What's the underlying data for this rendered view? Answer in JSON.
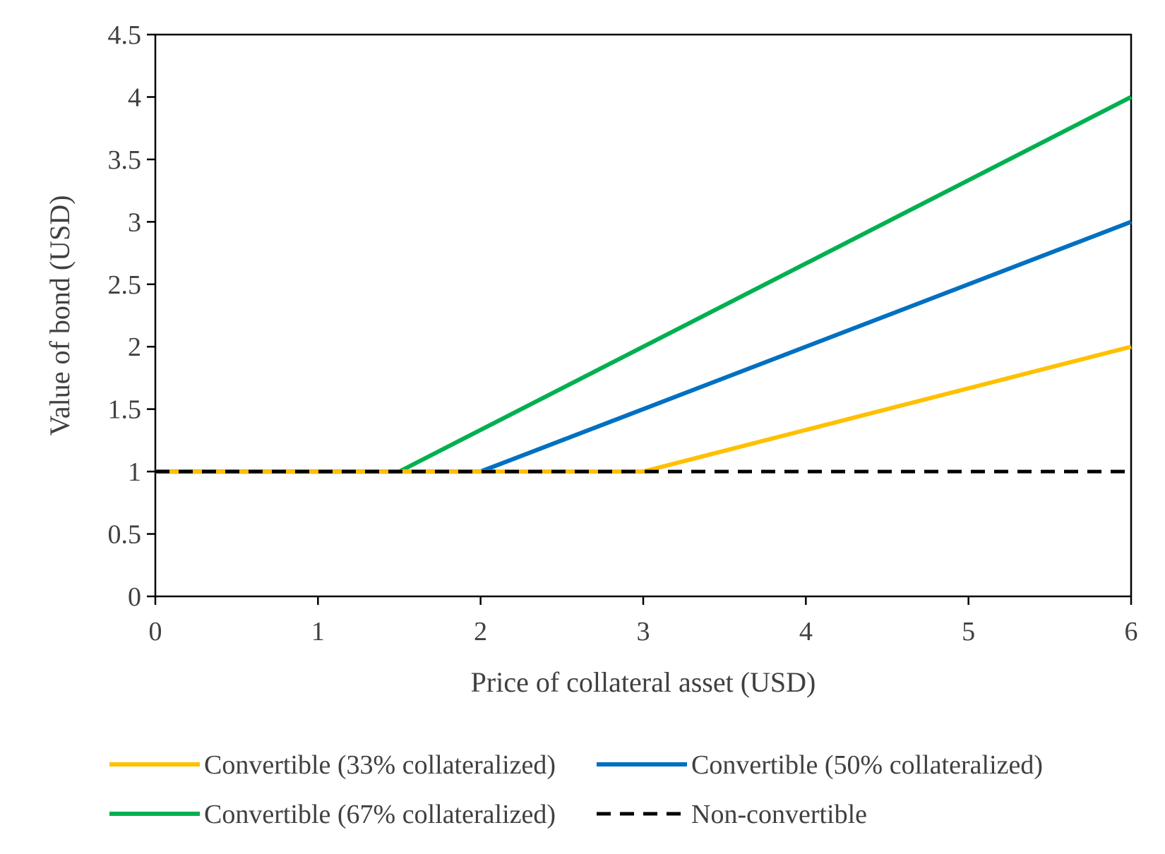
{
  "chart_data": {
    "type": "line",
    "title": "",
    "xlabel": "Price of collateral asset (USD)",
    "ylabel": "Value of bond (USD)",
    "xlim": [
      0,
      6
    ],
    "ylim": [
      0,
      4.5
    ],
    "x_ticks": [
      "0",
      "1",
      "2",
      "3",
      "4",
      "5",
      "6"
    ],
    "y_ticks": [
      "0",
      "0.5",
      "1",
      "1.5",
      "2",
      "2.5",
      "3",
      "3.5",
      "4",
      "4.5"
    ],
    "grid": false,
    "legend_position": "bottom",
    "series": [
      {
        "name": "Convertible (33% collateralized)",
        "color": "#FFC000",
        "style": "solid",
        "x": [
          0,
          3,
          6
        ],
        "y": [
          1,
          1,
          2
        ]
      },
      {
        "name": "Convertible (50% collateralized)",
        "color": "#0070C0",
        "style": "solid",
        "x": [
          0,
          2,
          6
        ],
        "y": [
          1,
          1,
          3
        ]
      },
      {
        "name": "Convertible (67% collateralized)",
        "color": "#00B050",
        "style": "solid",
        "x": [
          0,
          1.5,
          6
        ],
        "y": [
          1,
          1,
          4
        ]
      },
      {
        "name": "Non-convertible",
        "color": "#000000",
        "style": "dashed",
        "x": [
          0,
          6
        ],
        "y": [
          1,
          1
        ]
      }
    ]
  }
}
